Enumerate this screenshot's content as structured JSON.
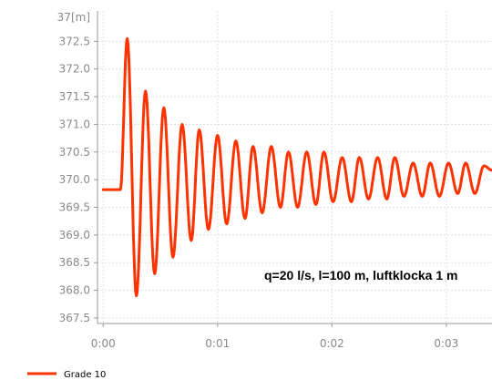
{
  "chart_data": {
    "type": "line",
    "y_unit": "37[m]",
    "xticks": [
      "0:00",
      "0:01",
      "0:02",
      "0:03"
    ],
    "yticks": [
      "372.5",
      "372.0",
      "371.5",
      "371.0",
      "370.5",
      "370.0",
      "369.5",
      "369.0",
      "368.5",
      "368.0",
      "367.5"
    ],
    "xlim": [
      -0.05,
      3.4
    ],
    "ylim": [
      367.4,
      373.05
    ],
    "grid": true,
    "legend_position": "bottom-left",
    "annotation": "q=20 l/s, l=100 m, luftklocka 1 m",
    "series": [
      {
        "name": "Grade 10",
        "color": "#ff3300",
        "baseline": 369.82,
        "start_time": 0.0,
        "oscillation_start": 0.15,
        "period": 0.155,
        "mean_level": 370.05,
        "peaks": [
          {
            "t": 0.21,
            "y": 372.55
          },
          {
            "t": 0.37,
            "y": 371.6
          },
          {
            "t": 0.53,
            "y": 371.3
          },
          {
            "t": 0.69,
            "y": 371.0
          },
          {
            "t": 0.84,
            "y": 370.9
          },
          {
            "t": 1.0,
            "y": 370.8
          },
          {
            "t": 1.16,
            "y": 370.7
          },
          {
            "t": 1.31,
            "y": 370.6
          },
          {
            "t": 1.47,
            "y": 370.6
          },
          {
            "t": 1.62,
            "y": 370.5
          },
          {
            "t": 1.78,
            "y": 370.5
          },
          {
            "t": 1.93,
            "y": 370.5
          },
          {
            "t": 2.09,
            "y": 370.4
          },
          {
            "t": 2.24,
            "y": 370.4
          },
          {
            "t": 2.4,
            "y": 370.4
          },
          {
            "t": 2.55,
            "y": 370.4
          },
          {
            "t": 2.71,
            "y": 370.3
          },
          {
            "t": 2.86,
            "y": 370.3
          },
          {
            "t": 3.02,
            "y": 370.3
          },
          {
            "t": 3.17,
            "y": 370.3
          },
          {
            "t": 3.33,
            "y": 370.25
          }
        ],
        "troughs": [
          {
            "t": 0.29,
            "y": 367.9
          },
          {
            "t": 0.45,
            "y": 368.3
          },
          {
            "t": 0.61,
            "y": 368.6
          },
          {
            "t": 0.77,
            "y": 368.9
          },
          {
            "t": 0.92,
            "y": 369.1
          },
          {
            "t": 1.08,
            "y": 369.2
          },
          {
            "t": 1.24,
            "y": 369.3
          },
          {
            "t": 1.39,
            "y": 369.4
          },
          {
            "t": 1.55,
            "y": 369.5
          },
          {
            "t": 1.7,
            "y": 369.5
          },
          {
            "t": 1.86,
            "y": 369.55
          },
          {
            "t": 2.01,
            "y": 369.6
          },
          {
            "t": 2.17,
            "y": 369.6
          },
          {
            "t": 2.32,
            "y": 369.65
          },
          {
            "t": 2.48,
            "y": 369.65
          },
          {
            "t": 2.63,
            "y": 369.7
          },
          {
            "t": 2.79,
            "y": 369.7
          },
          {
            "t": 2.94,
            "y": 369.7
          },
          {
            "t": 3.1,
            "y": 369.75
          },
          {
            "t": 3.25,
            "y": 369.75
          }
        ]
      }
    ]
  }
}
